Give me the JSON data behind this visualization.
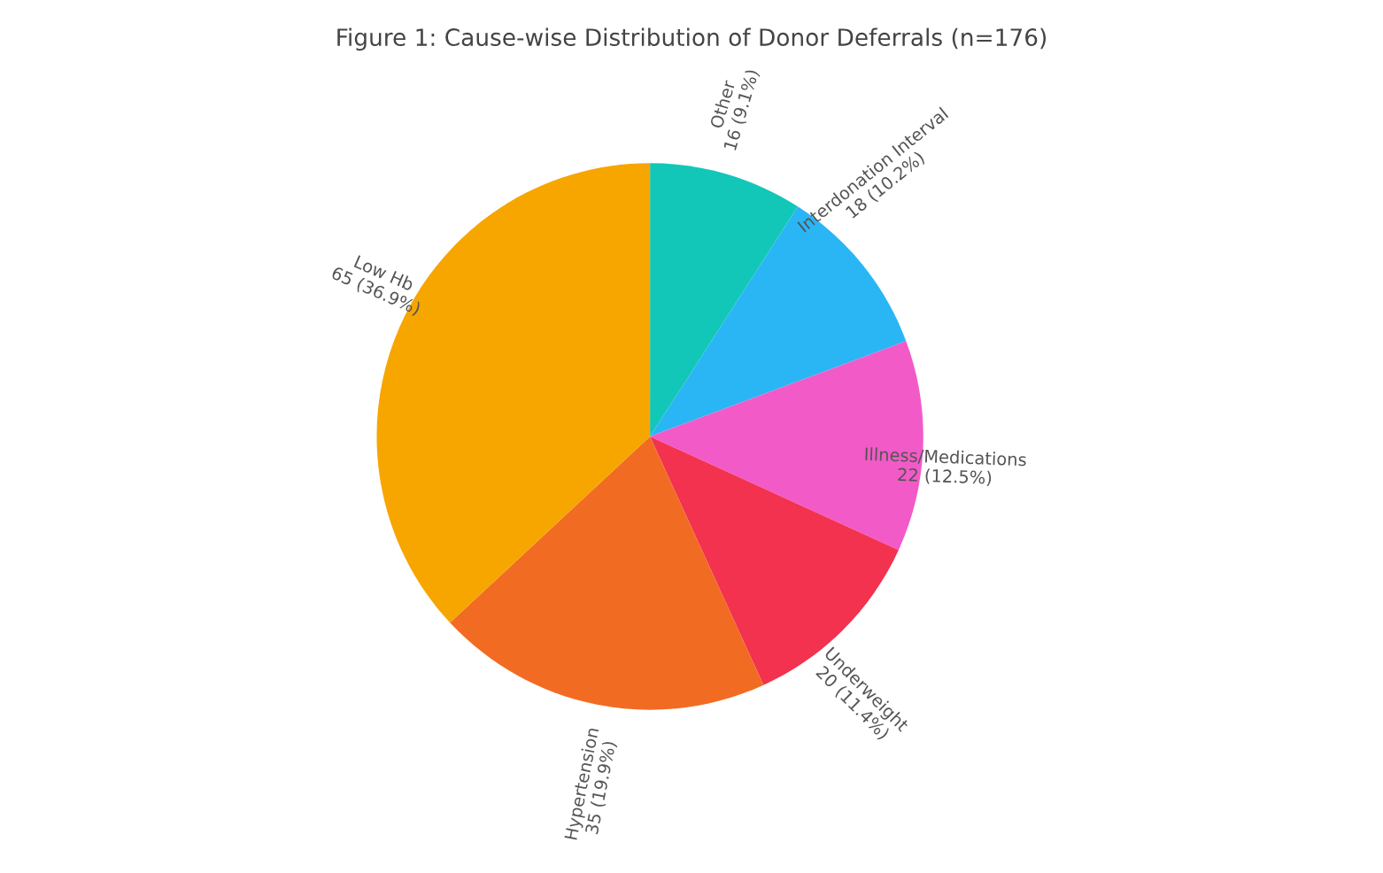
{
  "chart_data": {
    "type": "pie",
    "title": "Figure 1: Cause-wise Distribution of Donor Deferrals (n=176)",
    "categories": [
      "Other",
      "Interdonation Interval",
      "Illness/Medications",
      "Underweight",
      "Hypertension",
      "Low Hb"
    ],
    "values": [
      16,
      18,
      22,
      20,
      35,
      65
    ],
    "colors": [
      "#12c7b8",
      "#2ab6f5",
      "#f25ac8",
      "#f2324f",
      "#f26b22",
      "#f7a600"
    ],
    "value_labels": [
      "16 (9.1%)",
      "18 (10.2%)",
      "22 (12.5%)",
      "20 (11.4%)",
      "35 (19.9%)",
      "65 (36.9%)"
    ]
  }
}
